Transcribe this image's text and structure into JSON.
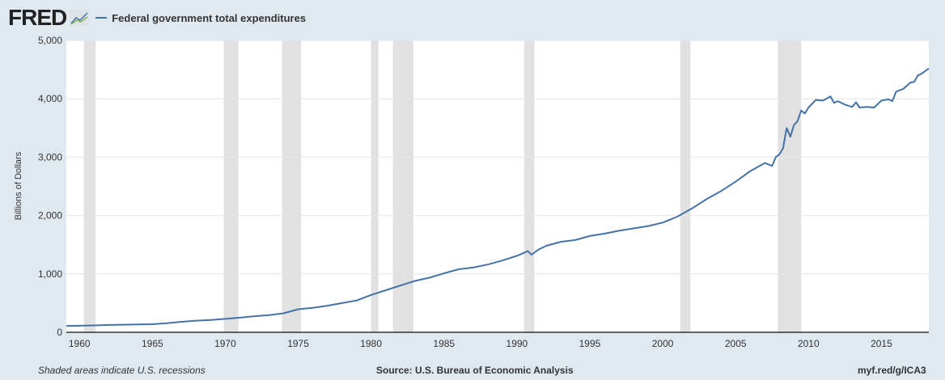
{
  "header": {
    "logo": "FRED",
    "legend": "Federal government total expenditures"
  },
  "footer": {
    "note": "Shaded areas indicate U.S. recessions",
    "source": "Source: U.S. Bureau of Economic Analysis",
    "link": "myf.red/g/ICA3"
  },
  "colors": {
    "line": "#4572a7",
    "recession": "#e1e1e1",
    "bg": "#e1e9f0"
  },
  "chart_data": {
    "type": "line",
    "title": "Federal government total expenditures",
    "xlabel": "",
    "ylabel": "Billions of Dollars",
    "xlim": [
      1959.1,
      2018.25
    ],
    "ylim": [
      0,
      5000
    ],
    "xticks": [
      1960,
      1965,
      1970,
      1975,
      1980,
      1985,
      1990,
      1995,
      2000,
      2005,
      2010,
      2015
    ],
    "yticks": [
      0,
      1000,
      2000,
      3000,
      4000,
      5000
    ],
    "ytick_labels": [
      "0",
      "1,000",
      "2,000",
      "3,000",
      "4,000",
      "5,000"
    ],
    "recessions": [
      [
        1960.3,
        1961.1
      ],
      [
        1969.9,
        1970.9
      ],
      [
        1973.9,
        1975.2
      ],
      [
        1980.0,
        1980.5
      ],
      [
        1981.5,
        1982.9
      ],
      [
        1990.5,
        1991.2
      ],
      [
        2001.2,
        2001.9
      ],
      [
        2007.9,
        2009.5
      ]
    ],
    "series": [
      {
        "name": "Federal government total expenditures",
        "points": [
          [
            1959.1,
            110
          ],
          [
            1960,
            112
          ],
          [
            1961,
            118
          ],
          [
            1962,
            126
          ],
          [
            1963,
            130
          ],
          [
            1964,
            135
          ],
          [
            1965,
            138
          ],
          [
            1966,
            155
          ],
          [
            1967,
            180
          ],
          [
            1968,
            200
          ],
          [
            1969,
            210
          ],
          [
            1970,
            230
          ],
          [
            1971,
            250
          ],
          [
            1972,
            275
          ],
          [
            1973,
            295
          ],
          [
            1974,
            325
          ],
          [
            1975,
            395
          ],
          [
            1976,
            420
          ],
          [
            1977,
            455
          ],
          [
            1978,
            500
          ],
          [
            1979,
            545
          ],
          [
            1980,
            640
          ],
          [
            1981,
            720
          ],
          [
            1982,
            800
          ],
          [
            1983,
            880
          ],
          [
            1984,
            935
          ],
          [
            1985,
            1010
          ],
          [
            1986,
            1080
          ],
          [
            1987,
            1110
          ],
          [
            1988,
            1160
          ],
          [
            1989,
            1230
          ],
          [
            1990,
            1310
          ],
          [
            1990.75,
            1390
          ],
          [
            1991,
            1330
          ],
          [
            1991.5,
            1420
          ],
          [
            1992,
            1480
          ],
          [
            1993,
            1550
          ],
          [
            1994,
            1580
          ],
          [
            1995,
            1650
          ],
          [
            1996,
            1690
          ],
          [
            1997,
            1740
          ],
          [
            1998,
            1780
          ],
          [
            1999,
            1820
          ],
          [
            2000,
            1880
          ],
          [
            2001,
            1980
          ],
          [
            2002,
            2120
          ],
          [
            2003,
            2280
          ],
          [
            2004,
            2420
          ],
          [
            2005,
            2580
          ],
          [
            2006,
            2760
          ],
          [
            2007,
            2900
          ],
          [
            2007.5,
            2850
          ],
          [
            2007.75,
            3000
          ],
          [
            2008,
            3050
          ],
          [
            2008.25,
            3150
          ],
          [
            2008.5,
            3500
          ],
          [
            2008.75,
            3350
          ],
          [
            2009,
            3550
          ],
          [
            2009.25,
            3620
          ],
          [
            2009.5,
            3800
          ],
          [
            2009.75,
            3750
          ],
          [
            2010,
            3850
          ],
          [
            2010.5,
            3980
          ],
          [
            2011,
            3970
          ],
          [
            2011.5,
            4040
          ],
          [
            2011.75,
            3930
          ],
          [
            2012,
            3960
          ],
          [
            2012.5,
            3900
          ],
          [
            2013,
            3860
          ],
          [
            2013.25,
            3940
          ],
          [
            2013.5,
            3850
          ],
          [
            2014,
            3860
          ],
          [
            2014.5,
            3850
          ],
          [
            2015,
            3970
          ],
          [
            2015.5,
            3990
          ],
          [
            2015.75,
            3960
          ],
          [
            2016,
            4120
          ],
          [
            2016.5,
            4170
          ],
          [
            2017,
            4280
          ],
          [
            2017.25,
            4290
          ],
          [
            2017.5,
            4400
          ],
          [
            2017.75,
            4430
          ],
          [
            2018.25,
            4520
          ]
        ]
      }
    ]
  }
}
